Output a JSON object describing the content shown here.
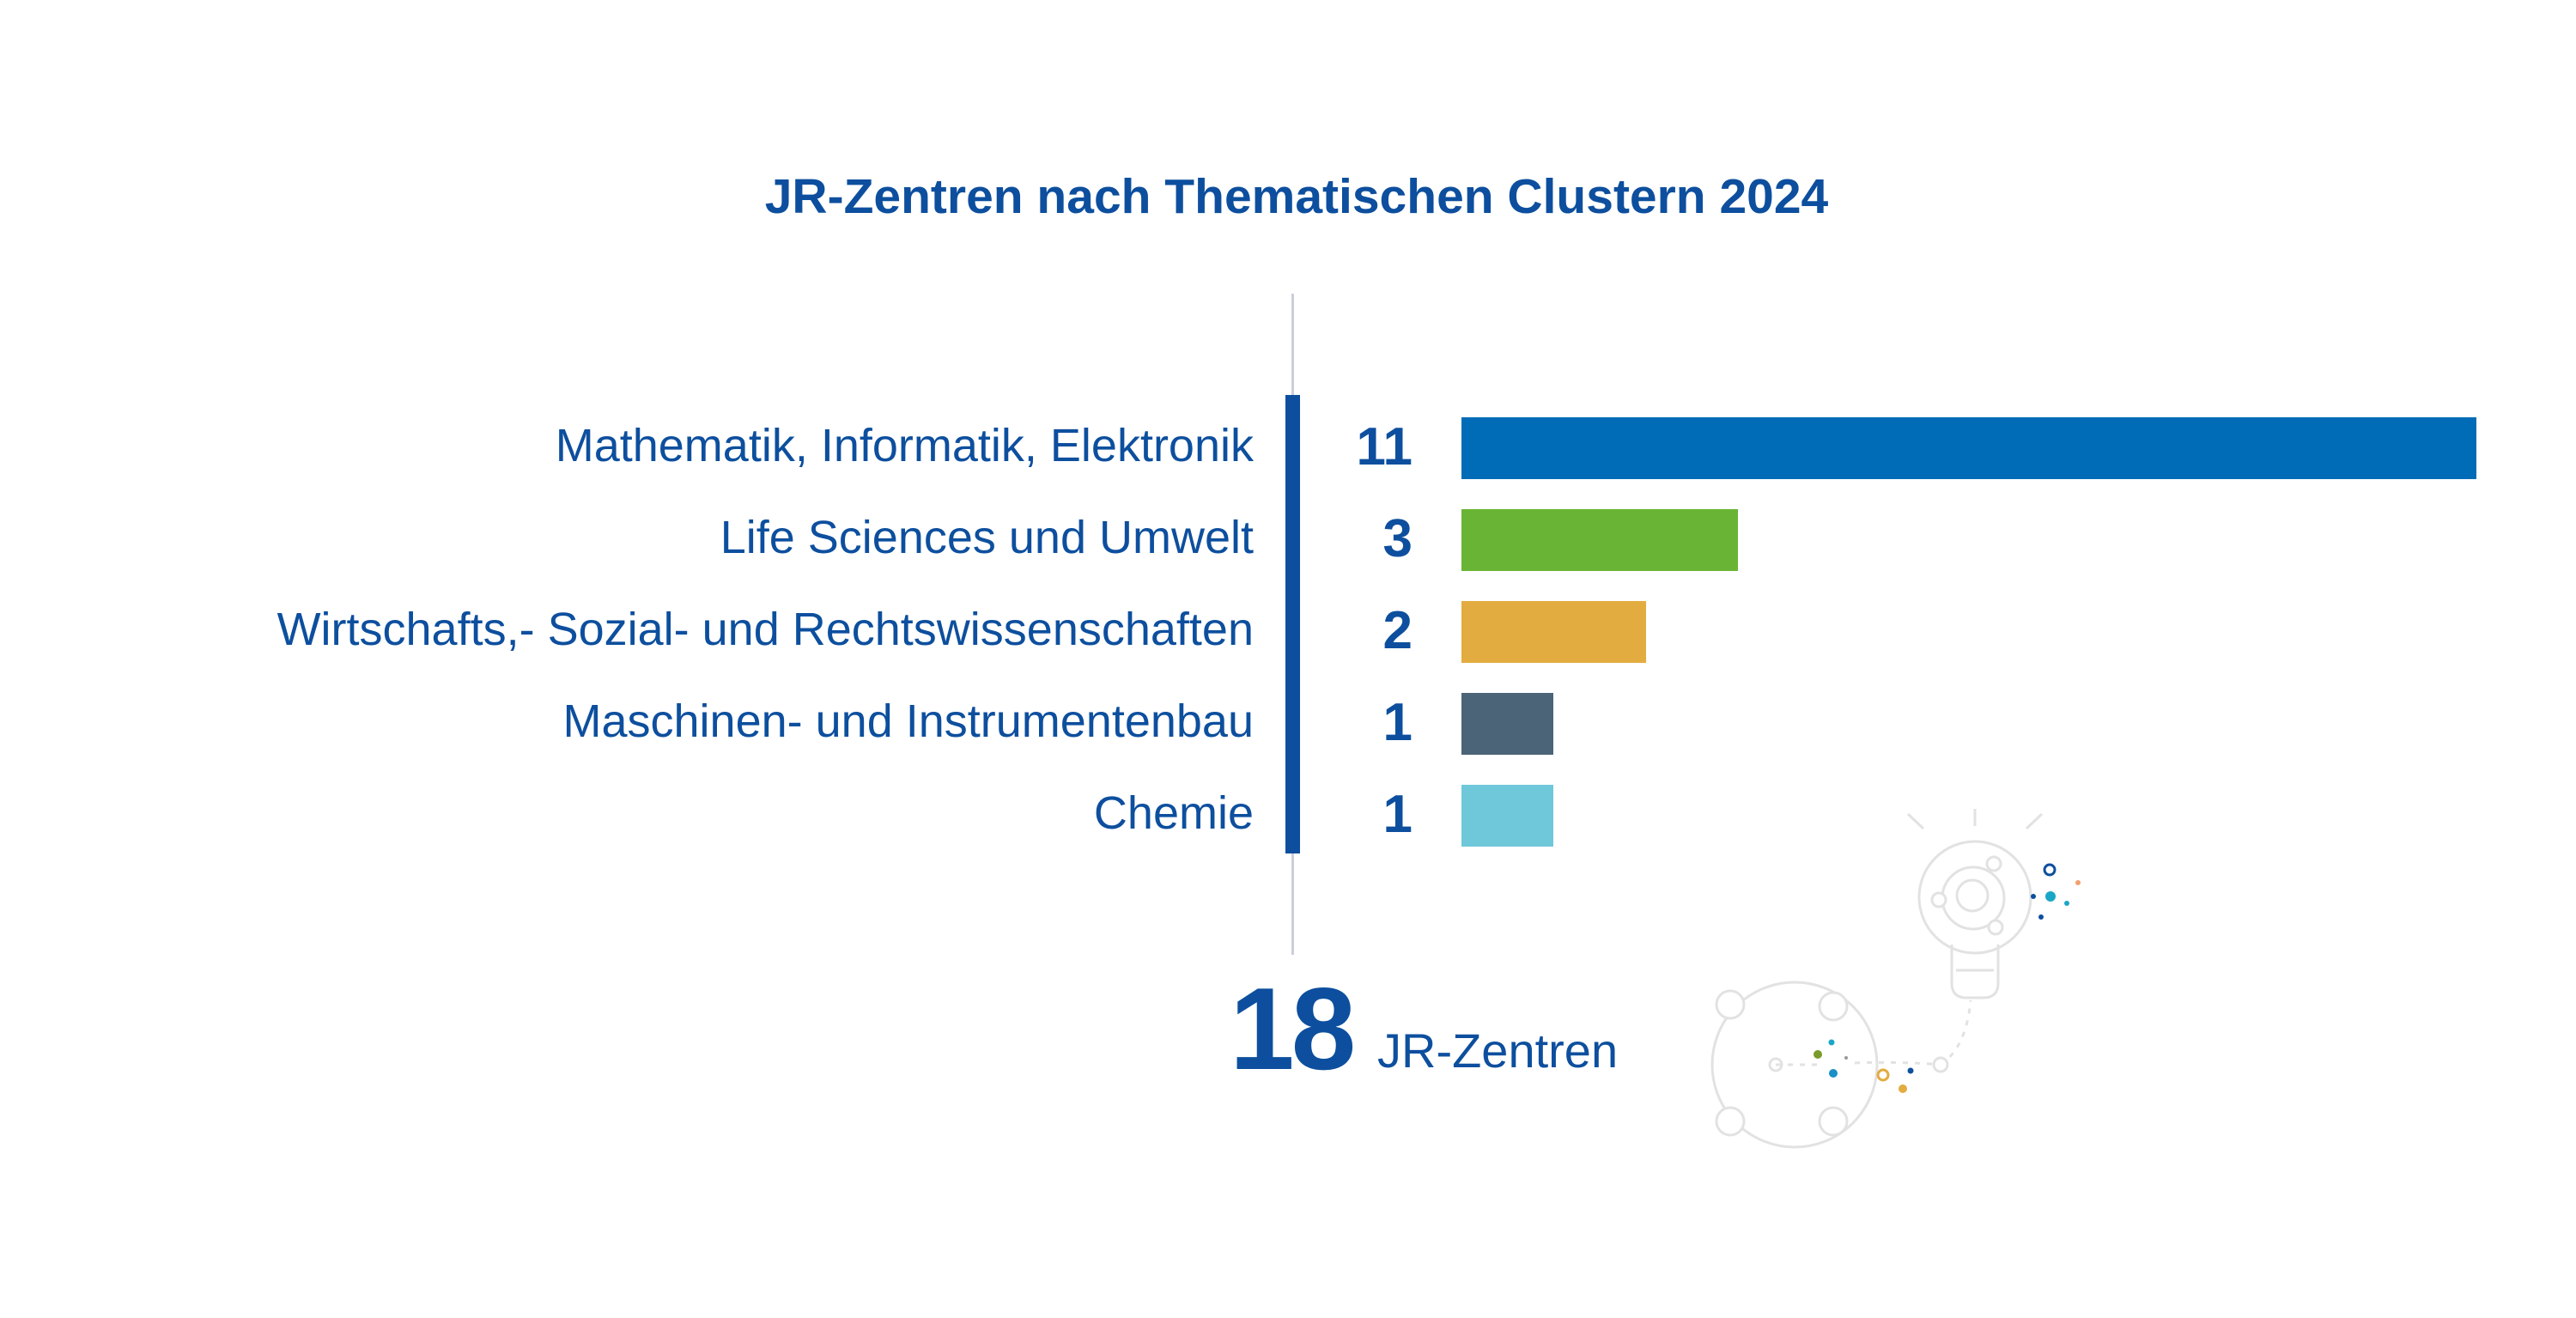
{
  "chart_data": {
    "type": "bar",
    "orientation": "horizontal",
    "title": "JR-Zentren nach Thematischen Clustern 2024",
    "categories": [
      "Mathematik, Informatik, Elektronik",
      "Life Sciences und Umwelt",
      "Wirtschafts,- Sozial- und Rechtswissenschaften",
      "Maschinen- und Instrumentenbau",
      "Chemie"
    ],
    "values": [
      11,
      3,
      2,
      1,
      1
    ],
    "value_labels": [
      "11",
      "3",
      "2",
      "1",
      "1"
    ],
    "colors": [
      "#006cb7",
      "#69b434",
      "#e3ac40",
      "#4b6478",
      "#6fc7da"
    ],
    "xlim": [
      0,
      11
    ],
    "grid": false,
    "legend": "none"
  },
  "summary": {
    "total": "18",
    "unit": "JR-Zentren"
  }
}
